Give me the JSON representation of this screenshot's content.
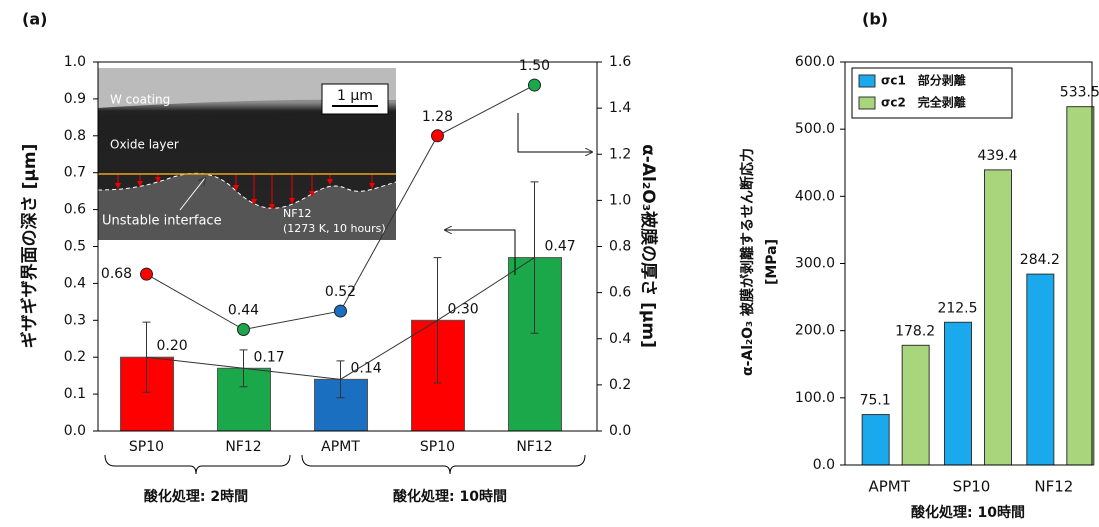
{
  "chart_data": [
    {
      "type": "bar",
      "panel": "(a)",
      "categories": [
        "SP10",
        "NF12",
        "APMT",
        "SP10",
        "NF12"
      ],
      "group_labels": [
        "酸化処理: 2時間",
        "酸化処理: 10時間"
      ],
      "values": [
        0.2,
        0.17,
        0.14,
        0.3,
        0.47
      ],
      "value_labels": [
        "0.20",
        "0.17",
        "0.14",
        "0.30",
        "0.47"
      ],
      "errors": [
        0.095,
        0.05,
        0.05,
        0.17,
        0.205
      ],
      "colors": [
        "#ff0000",
        "#1aa84a",
        "#1a6fc0",
        "#ff0000",
        "#1aa84a"
      ],
      "ylabel": "ギザギザ界面の深さ [μm]",
      "ylim": [
        0,
        1.0
      ],
      "yticks": [
        {
          "value": 0,
          "label": "0.0"
        },
        0.1,
        0.2,
        0.3,
        0.4,
        0.5,
        0.6,
        0.7,
        0.8,
        0.9,
        {
          "value": 1,
          "label": "1.0"
        }
      ],
      "line": {
        "axis": "y2",
        "values": [
          0.68,
          0.44,
          0.52,
          1.28,
          1.5
        ],
        "value_labels": [
          "0.68",
          "0.44",
          "0.52",
          "1.28",
          "1.50"
        ],
        "colors": [
          "#ff0000",
          "#1aa84a",
          "#1a6fc0",
          "#ff0000",
          "#1aa84a"
        ]
      },
      "y2label": "α-Al₂O₃被膜の厚さ [μm]",
      "y2lim": [
        0,
        1.6
      ],
      "y2ticks": [
        {
          "value": 0,
          "label": "0.0"
        },
        0.2,
        0.4,
        0.6,
        0.8,
        {
          "value": 1,
          "label": "1.0"
        },
        1.2,
        1.4,
        1.6
      ],
      "annotations": [
        "W coating",
        "1 μm",
        "Oxide layer",
        "Unstable interface",
        "NF12",
        "(1273 K, 10 hours)"
      ]
    },
    {
      "type": "bar",
      "panel": "(b)",
      "categories": [
        "APMT",
        "SP10",
        "NF12"
      ],
      "series": [
        {
          "name": "σc1　部分剥離",
          "color": "#19a9ec",
          "values": [
            75.1,
            212.5,
            284.2
          ]
        },
        {
          "name": "σc2　完全剥離",
          "color": "#a9d67c",
          "values": [
            178.2,
            439.4,
            533.5
          ]
        }
      ],
      "xlabel": "酸化処理: 10時間",
      "ylabel": [
        "α-Al₂O₃ 被膜が剥離するせん断応力",
        "[MPa]"
      ],
      "ylim": [
        0,
        600
      ],
      "yticks": [
        {
          "value": 0,
          "label": "0.0"
        },
        {
          "value": 100,
          "label": "100.0"
        },
        {
          "value": 200,
          "label": "200.0"
        },
        {
          "value": 300,
          "label": "300.0"
        },
        {
          "value": 400,
          "label": "400.0"
        },
        {
          "value": 500,
          "label": "500.0"
        },
        {
          "value": 600,
          "label": "600.0"
        }
      ],
      "legend": "upper left"
    }
  ]
}
